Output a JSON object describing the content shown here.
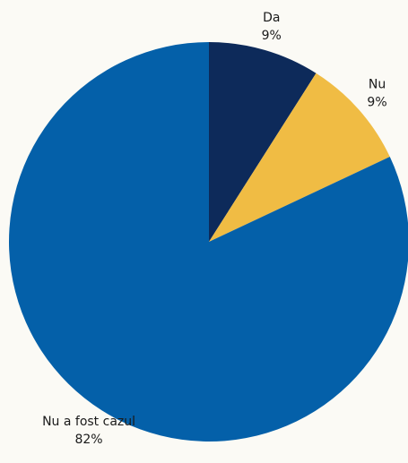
{
  "chart_data": {
    "type": "pie",
    "categories": [
      "Da",
      "Nu",
      "Nu a fost cazul"
    ],
    "values": [
      9,
      9,
      82
    ],
    "value_labels": [
      "9%",
      "9%",
      "82%"
    ],
    "colors": [
      "#0d2a5a",
      "#f0bc44",
      "#0460a9"
    ]
  }
}
